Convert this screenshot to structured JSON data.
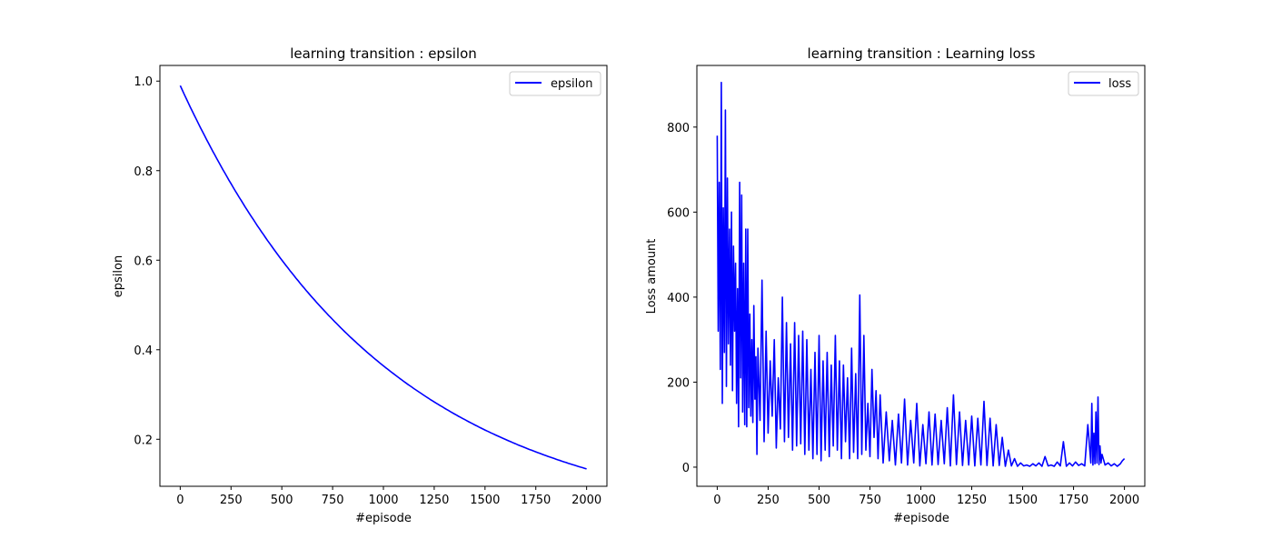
{
  "colors": {
    "series": "#0000ff",
    "axes": "#000000",
    "background": "#ffffff",
    "legend_border": "#cccccc"
  },
  "chart_data": [
    {
      "type": "line",
      "title": "learning transition : epsilon",
      "xlabel": "#episode",
      "ylabel": "epsilon",
      "xlim": [
        -100,
        2100
      ],
      "ylim": [
        0.095,
        1.035
      ],
      "xticks": [
        0,
        250,
        500,
        750,
        1000,
        1250,
        1500,
        1750,
        2000
      ],
      "yticks": [
        0.2,
        0.4,
        0.6,
        0.8,
        1.0
      ],
      "ytick_labels": [
        "0.2",
        "0.4",
        "0.6",
        "0.8",
        "1.0"
      ],
      "grid": false,
      "legend": "upper right",
      "series": [
        {
          "name": "epsilon",
          "color": "#0000ff",
          "formula": "0.99 * 0.999^x",
          "x": [
            0,
            100,
            200,
            300,
            400,
            500,
            600,
            700,
            800,
            900,
            1000,
            1100,
            1200,
            1300,
            1400,
            1500,
            1600,
            1700,
            1800,
            1900,
            2000
          ],
          "y": [
            0.99,
            0.896,
            0.811,
            0.734,
            0.664,
            0.601,
            0.543,
            0.492,
            0.445,
            0.402,
            0.364,
            0.33,
            0.298,
            0.27,
            0.244,
            0.221,
            0.2,
            0.181,
            0.164,
            0.148,
            0.134
          ]
        }
      ]
    },
    {
      "type": "line",
      "title": "learning transition : Learning loss",
      "xlabel": "#episode",
      "ylabel": "Loss amount",
      "xlim": [
        -100,
        2100
      ],
      "ylim": [
        -45,
        945
      ],
      "xticks": [
        0,
        250,
        500,
        750,
        1000,
        1250,
        1500,
        1750,
        2000
      ],
      "yticks": [
        0,
        200,
        400,
        600,
        800
      ],
      "ytick_labels": [
        "0",
        "200",
        "400",
        "600",
        "800"
      ],
      "grid": false,
      "legend": "upper right",
      "series": [
        {
          "name": "loss",
          "color": "#0000ff",
          "x": [
            0,
            5,
            10,
            15,
            20,
            25,
            30,
            35,
            40,
            45,
            50,
            55,
            60,
            65,
            70,
            75,
            80,
            85,
            90,
            95,
            100,
            105,
            110,
            115,
            120,
            125,
            130,
            135,
            140,
            145,
            150,
            155,
            160,
            165,
            170,
            175,
            180,
            185,
            190,
            195,
            200,
            210,
            220,
            230,
            240,
            250,
            260,
            270,
            280,
            290,
            300,
            310,
            320,
            330,
            340,
            350,
            360,
            370,
            380,
            390,
            400,
            410,
            420,
            430,
            440,
            450,
            460,
            470,
            480,
            490,
            500,
            510,
            520,
            530,
            540,
            550,
            560,
            570,
            580,
            590,
            600,
            610,
            620,
            630,
            640,
            650,
            660,
            670,
            680,
            690,
            700,
            710,
            720,
            730,
            740,
            750,
            760,
            770,
            780,
            790,
            800,
            815,
            830,
            845,
            860,
            875,
            890,
            905,
            920,
            935,
            950,
            965,
            980,
            995,
            1010,
            1025,
            1040,
            1055,
            1070,
            1085,
            1100,
            1115,
            1130,
            1145,
            1160,
            1175,
            1190,
            1205,
            1220,
            1235,
            1250,
            1265,
            1280,
            1295,
            1310,
            1325,
            1340,
            1355,
            1370,
            1385,
            1400,
            1415,
            1430,
            1445,
            1460,
            1475,
            1490,
            1505,
            1520,
            1535,
            1550,
            1565,
            1580,
            1595,
            1610,
            1625,
            1640,
            1655,
            1670,
            1685,
            1700,
            1715,
            1730,
            1745,
            1760,
            1775,
            1790,
            1805,
            1820,
            1835,
            1840,
            1845,
            1850,
            1855,
            1860,
            1865,
            1870,
            1875,
            1880,
            1885,
            1890,
            1905,
            1920,
            1935,
            1950,
            1965,
            1980,
            1990,
            2000
          ],
          "y": [
            780,
            320,
            670,
            230,
            905,
            150,
            610,
            270,
            840,
            190,
            680,
            290,
            560,
            240,
            600,
            180,
            520,
            320,
            480,
            150,
            420,
            95,
            670,
            210,
            640,
            130,
            480,
            100,
            560,
            95,
            560,
            140,
            360,
            120,
            300,
            105,
            380,
            160,
            260,
            30,
            280,
            110,
            440,
            60,
            320,
            80,
            250,
            120,
            300,
            45,
            210,
            90,
            400,
            60,
            340,
            70,
            290,
            40,
            340,
            50,
            310,
            55,
            320,
            30,
            300,
            40,
            230,
            20,
            270,
            30,
            310,
            15,
            250,
            40,
            270,
            25,
            240,
            50,
            310,
            40,
            250,
            20,
            240,
            60,
            210,
            20,
            280,
            35,
            220,
            20,
            405,
            30,
            310,
            40,
            150,
            25,
            230,
            70,
            180,
            20,
            170,
            10,
            130,
            15,
            110,
            5,
            125,
            10,
            160,
            5,
            110,
            10,
            150,
            3,
            100,
            8,
            130,
            5,
            125,
            6,
            110,
            8,
            140,
            3,
            170,
            6,
            130,
            4,
            110,
            5,
            120,
            3,
            115,
            5,
            155,
            4,
            115,
            3,
            100,
            4,
            70,
            2,
            40,
            3,
            20,
            2,
            10,
            3,
            5,
            2,
            8,
            3,
            10,
            2,
            25,
            3,
            5,
            2,
            12,
            3,
            60,
            2,
            10,
            3,
            12,
            4,
            8,
            3,
            100,
            10,
            150,
            5,
            80,
            8,
            130,
            10,
            165,
            6,
            50,
            10,
            30,
            5,
            10,
            3,
            8,
            2,
            8,
            15,
            20
          ]
        }
      ]
    }
  ]
}
